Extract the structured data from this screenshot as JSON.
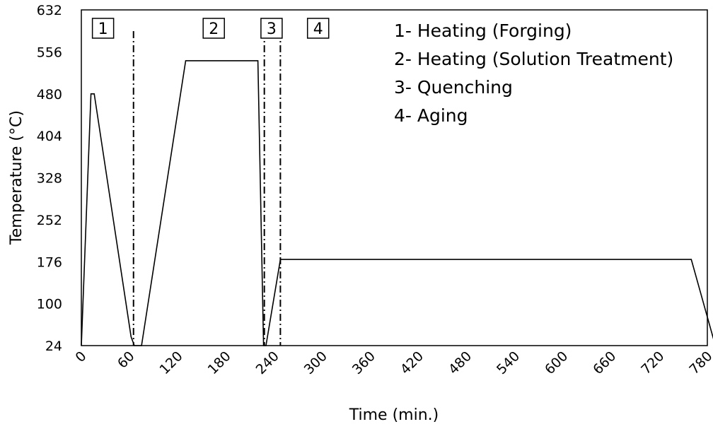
{
  "chart_data": {
    "type": "line",
    "xlabel": "Time (min.)",
    "ylabel": "Temperature (°C)",
    "xlim": [
      0,
      780
    ],
    "ylim": [
      24,
      632
    ],
    "x_ticks": [
      "0",
      "60",
      "120",
      "180",
      "240",
      "300",
      "360",
      "420",
      "480",
      "540",
      "600",
      "660",
      "720",
      "780"
    ],
    "y_ticks": [
      "24",
      "100",
      "176",
      "252",
      "328",
      "404",
      "480",
      "556",
      "632"
    ],
    "series": [
      {
        "x": [
          0,
          12,
          16,
          62,
          66,
          75,
          130,
          220,
          227,
          230,
          248,
          760,
          790
        ],
        "y": [
          24,
          480,
          480,
          40,
          24,
          24,
          540,
          540,
          24,
          24,
          180,
          180,
          24
        ]
      }
    ],
    "phase_dividers_x": [
      65,
      228,
      248
    ],
    "phase_labels": [
      {
        "text": "1",
        "x": 27
      },
      {
        "text": "2",
        "x": 165
      },
      {
        "text": "3",
        "x": 237
      },
      {
        "text": "4",
        "x": 295
      }
    ],
    "legend": [
      "1- Heating (Forging)",
      "2- Heating (Solution Treatment)",
      "3- Quenching",
      "4- Aging"
    ],
    "grid": false,
    "legend_position": "top-right"
  }
}
